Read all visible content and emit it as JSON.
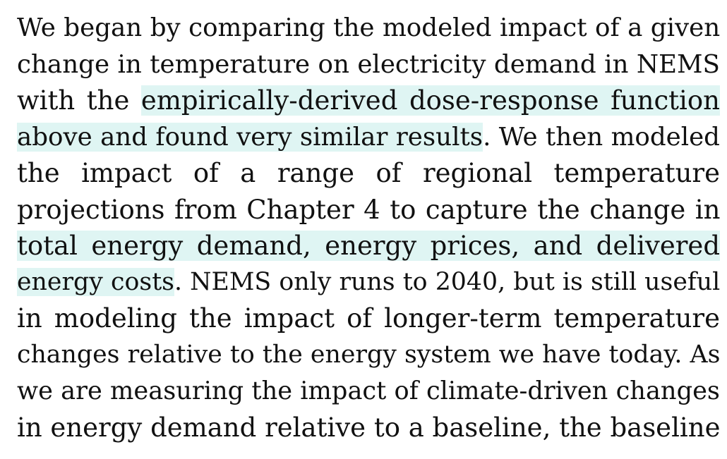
{
  "document": {
    "lines": [
      [
        {
          "text": "We began by comparing the modeled impact of a given",
          "highlight": false
        }
      ],
      [
        {
          "text": "change in temperature on electricity demand in NEMS",
          "highlight": false
        }
      ],
      [
        {
          "text": "with the ",
          "highlight": false
        },
        {
          "text": "empirically-derived dose-response function",
          "highlight": true
        }
      ],
      [
        {
          "text": "above and found very similar results",
          "highlight": true
        },
        {
          "text": ". We then modeled",
          "highlight": false
        }
      ],
      [
        {
          "text": "the impact of a range of regional temperature",
          "highlight": false
        }
      ],
      [
        {
          "text": "projections from Chapter 4 to capture the change in",
          "highlight": false
        }
      ],
      [
        {
          "text": "total energy demand, energy prices, and delivered",
          "highlight": true
        }
      ],
      [
        {
          "text": "energy costs",
          "highlight": true
        },
        {
          "text": ". NEMS only runs to 2040, but is still useful",
          "highlight": false
        }
      ],
      [
        {
          "text": "in modeling the impact of longer-term temperature",
          "highlight": false
        }
      ],
      [
        {
          "text": "changes relative to the energy system we have today. As",
          "highlight": false
        }
      ],
      [
        {
          "text": "we are measuring the impact of climate-driven changes",
          "highlight": false
        }
      ],
      [
        {
          "text": "in energy demand relative to a baseline, the baseline",
          "highlight": false
        }
      ]
    ],
    "highlight_color": "#dff5f3",
    "text_color": "#111111"
  }
}
